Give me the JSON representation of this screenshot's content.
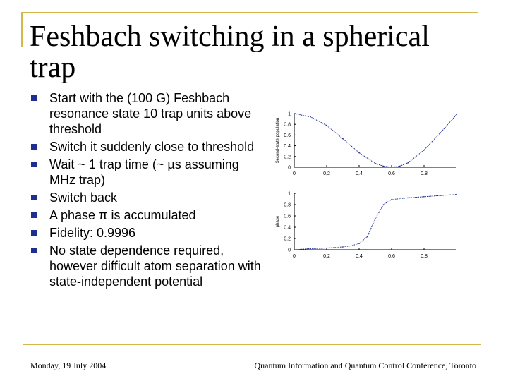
{
  "slide": {
    "title": "Feshbach switching in a spherical trap",
    "bullets": [
      "Start with the (100 G) Feshbach resonance state 10 trap units above threshold",
      "Switch it suddenly close to threshold",
      "Wait ~ 1 trap time (~ µs assuming MHz trap)",
      "Switch back",
      "A phase π is accumulated",
      "Fidelity: 0.9996",
      "No state dependence required, however difficult atom separation with state-independent potential"
    ]
  },
  "footer": {
    "date": "Monday, 19 July 2004",
    "conference": "Quantum Information and Quantum Control Conference, Toronto"
  },
  "colors": {
    "accent_rule": "#d4b84c",
    "bullet": "#1f2f8f",
    "curve": "#1f2f8f"
  },
  "chart_data": [
    {
      "type": "line",
      "ylabel": "Second-state population",
      "xlim": [
        0,
        1
      ],
      "ylim": [
        0,
        1
      ],
      "x_ticks": [
        "0",
        "0.2",
        "0.4",
        "0.6",
        "0.8"
      ],
      "y_ticks": [
        "0",
        "0.2",
        "0.4",
        "0.6",
        "0.8",
        "1"
      ],
      "x": [
        0,
        0.1,
        0.2,
        0.3,
        0.4,
        0.5,
        0.55,
        0.6,
        0.65,
        0.7,
        0.8,
        0.9,
        1.0
      ],
      "y": [
        1.0,
        0.94,
        0.78,
        0.53,
        0.27,
        0.07,
        0.02,
        0.0,
        0.02,
        0.08,
        0.32,
        0.64,
        0.98
      ]
    },
    {
      "type": "line",
      "ylabel": "phase",
      "xlim": [
        0,
        1
      ],
      "ylim": [
        0,
        1
      ],
      "x_ticks": [
        "0",
        "0.2",
        "0.4",
        "0.6",
        "0.8"
      ],
      "y_ticks": [
        "0",
        "0.2",
        "0.4",
        "0.6",
        "0.8",
        "1"
      ],
      "x": [
        0,
        0.1,
        0.2,
        0.3,
        0.35,
        0.4,
        0.45,
        0.5,
        0.55,
        0.6,
        0.7,
        0.8,
        0.9,
        1.0
      ],
      "y": [
        0.0,
        0.02,
        0.03,
        0.05,
        0.07,
        0.11,
        0.23,
        0.55,
        0.8,
        0.89,
        0.92,
        0.94,
        0.96,
        0.98
      ]
    }
  ]
}
